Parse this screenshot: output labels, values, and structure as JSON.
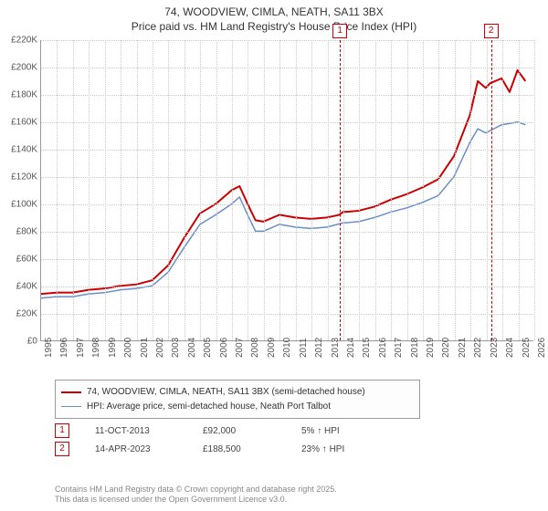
{
  "title": {
    "line1": "74, WOODVIEW, CIMLA, NEATH, SA11 3BX",
    "line2": "Price paid vs. HM Land Registry's House Price Index (HPI)"
  },
  "chart": {
    "type": "line",
    "x_min": 1995,
    "x_max": 2026,
    "x_ticks": [
      1995,
      1996,
      1997,
      1998,
      1999,
      2000,
      2001,
      2002,
      2003,
      2004,
      2005,
      2006,
      2007,
      2008,
      2009,
      2010,
      2011,
      2012,
      2013,
      2014,
      2015,
      2016,
      2017,
      2018,
      2019,
      2020,
      2021,
      2022,
      2023,
      2024,
      2025,
      2026
    ],
    "y_min": 0,
    "y_max": 220000,
    "y_ticks": [
      0,
      20000,
      40000,
      60000,
      80000,
      100000,
      120000,
      140000,
      160000,
      180000,
      200000,
      220000
    ],
    "y_tick_labels": [
      "£0",
      "£20K",
      "£40K",
      "£60K",
      "£80K",
      "£100K",
      "£120K",
      "£140K",
      "£160K",
      "£180K",
      "£200K",
      "£220K"
    ],
    "grid_color": "#c8c8c8",
    "axis_color": "#9a9a9a",
    "background_color": "#ffffff",
    "axis_fontsize": 10,
    "series": [
      {
        "name": "74, WOODVIEW, CIMLA, NEATH, SA11 3BX (semi-detached house)",
        "color": "#cc0000",
        "line_width": 2,
        "points": [
          [
            1995,
            34000
          ],
          [
            1996,
            35000
          ],
          [
            1997,
            35000
          ],
          [
            1998,
            37000
          ],
          [
            1999,
            38000
          ],
          [
            2000,
            40000
          ],
          [
            2001,
            41000
          ],
          [
            2002,
            44000
          ],
          [
            2003,
            55000
          ],
          [
            2004,
            75000
          ],
          [
            2005,
            93000
          ],
          [
            2006,
            100000
          ],
          [
            2007,
            110000
          ],
          [
            2007.5,
            113000
          ],
          [
            2008,
            100000
          ],
          [
            2008.5,
            88000
          ],
          [
            2009,
            87000
          ],
          [
            2010,
            92000
          ],
          [
            2011,
            90000
          ],
          [
            2012,
            89000
          ],
          [
            2013,
            90000
          ],
          [
            2013.78,
            92000
          ],
          [
            2014,
            94000
          ],
          [
            2015,
            95000
          ],
          [
            2016,
            98000
          ],
          [
            2017,
            103000
          ],
          [
            2018,
            107000
          ],
          [
            2019,
            112000
          ],
          [
            2020,
            118000
          ],
          [
            2021,
            135000
          ],
          [
            2022,
            165000
          ],
          [
            2022.5,
            190000
          ],
          [
            2023,
            185000
          ],
          [
            2023.28,
            188500
          ],
          [
            2024,
            192000
          ],
          [
            2024.5,
            182000
          ],
          [
            2025,
            198000
          ],
          [
            2025.5,
            190000
          ]
        ]
      },
      {
        "name": "HPI: Average price, semi-detached house, Neath Port Talbot",
        "color": "#6a8fc7",
        "line_width": 1.5,
        "points": [
          [
            1995,
            31000
          ],
          [
            1996,
            32000
          ],
          [
            1997,
            32000
          ],
          [
            1998,
            34000
          ],
          [
            1999,
            35000
          ],
          [
            2000,
            37000
          ],
          [
            2001,
            38000
          ],
          [
            2002,
            40000
          ],
          [
            2003,
            50000
          ],
          [
            2004,
            68000
          ],
          [
            2005,
            85000
          ],
          [
            2006,
            92000
          ],
          [
            2007,
            100000
          ],
          [
            2007.5,
            105000
          ],
          [
            2008,
            92000
          ],
          [
            2008.5,
            80000
          ],
          [
            2009,
            80000
          ],
          [
            2010,
            85000
          ],
          [
            2011,
            83000
          ],
          [
            2012,
            82000
          ],
          [
            2013,
            83000
          ],
          [
            2014,
            86000
          ],
          [
            2015,
            87000
          ],
          [
            2016,
            90000
          ],
          [
            2017,
            94000
          ],
          [
            2018,
            97000
          ],
          [
            2019,
            101000
          ],
          [
            2020,
            106000
          ],
          [
            2021,
            120000
          ],
          [
            2022,
            145000
          ],
          [
            2022.5,
            155000
          ],
          [
            2023,
            152000
          ],
          [
            2024,
            158000
          ],
          [
            2025,
            160000
          ],
          [
            2025.5,
            158000
          ]
        ]
      }
    ],
    "events": [
      {
        "n": "1",
        "x": 2013.78,
        "date": "11-OCT-2013",
        "price": "£92,000",
        "delta": "5% ↑ HPI"
      },
      {
        "n": "2",
        "x": 2023.28,
        "date": "14-APR-2023",
        "price": "£188,500",
        "delta": "23% ↑ HPI"
      }
    ]
  },
  "legend": {
    "items": [
      {
        "color": "#cc0000",
        "width": 2,
        "label": "74, WOODVIEW, CIMLA, NEATH, SA11 3BX (semi-detached house)"
      },
      {
        "color": "#6a8fc7",
        "width": 1.5,
        "label": "HPI: Average price, semi-detached house, Neath Port Talbot"
      }
    ]
  },
  "footer": {
    "line1": "Contains HM Land Registry data © Crown copyright and database right 2025.",
    "line2": "This data is licensed under the Open Government Licence v3.0."
  }
}
